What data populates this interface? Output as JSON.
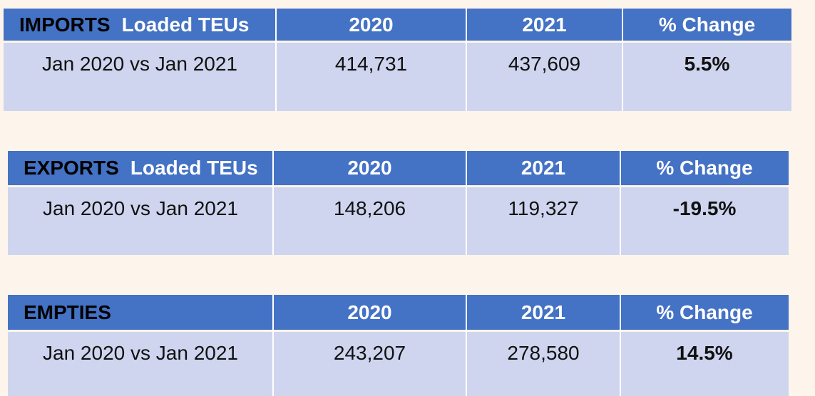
{
  "tables": [
    {
      "label": "IMPORTS",
      "sublabel": "Loaded TEUs",
      "columns": [
        "2020",
        "2021",
        "% Change"
      ],
      "rows": [
        [
          "Jan 2020 vs Jan 2021",
          "414,731",
          "437,609",
          "5.5%"
        ]
      ]
    },
    {
      "label": "EXPORTS",
      "sublabel": "Loaded TEUs",
      "columns": [
        "2020",
        "2021",
        "% Change"
      ],
      "rows": [
        [
          "Jan 2020 vs Jan 2021",
          "148,206",
          "119,327",
          "-19.5%"
        ]
      ]
    },
    {
      "label": "EMPTIES",
      "columns": [
        "2020",
        "2021",
        "% Change"
      ],
      "rows": [
        [
          "Jan 2020 vs Jan 2021",
          "243,207",
          "278,580",
          "14.5%"
        ]
      ]
    }
  ]
}
